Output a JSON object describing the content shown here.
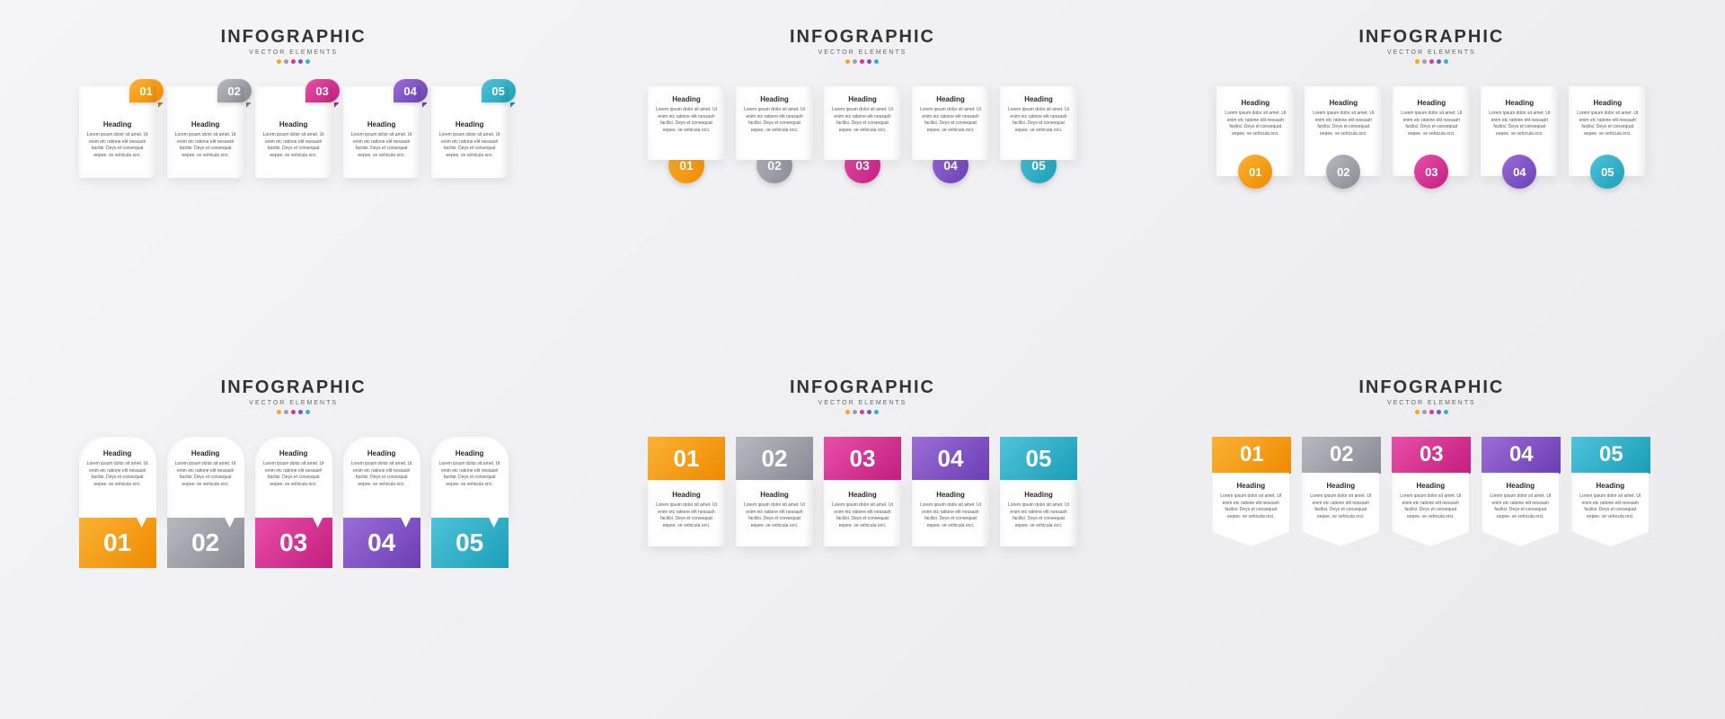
{
  "title": "INFOGRAPHIC",
  "subtitle": "VECTOR ELEMENTS",
  "heading": "Heading",
  "body": "Lorem ipsum dolor sit amet. Ut enim etc ratione elit nessash facilisi. Deys et consequat eepee. ve vehicula orci.",
  "title_fontsize": 20,
  "subtitle_fontsize": 7,
  "heading_fontsize": 8,
  "body_fontsize": 5,
  "background_gradient": [
    "#f5f5f7",
    "#ebebee"
  ],
  "card_bg": "#ffffff",
  "text_color": "#333333",
  "body_color": "#555555",
  "items": [
    {
      "num": "01",
      "grad": [
        "#f9b233",
        "#f08a00"
      ],
      "solid": "#f5a623"
    },
    {
      "num": "02",
      "grad": [
        "#b8b8c0",
        "#8a8a95"
      ],
      "solid": "#9e9ea8"
    },
    {
      "num": "03",
      "grad": [
        "#e84fa8",
        "#c31e7e"
      ],
      "solid": "#d43a94"
    },
    {
      "num": "04",
      "grad": [
        "#9b6dd7",
        "#6a3fb5"
      ],
      "solid": "#7d52c4"
    },
    {
      "num": "05",
      "grad": [
        "#4fc3d9",
        "#1a9fb8"
      ],
      "solid": "#2fb4cb"
    }
  ],
  "dot_colors": [
    "#f5a623",
    "#9e9ea8",
    "#d43a94",
    "#7d52c4",
    "#2fb4cb"
  ],
  "variants": [
    {
      "id": "v1",
      "type": "infographic",
      "style": "tab-top-right"
    },
    {
      "id": "v2",
      "type": "infographic",
      "style": "circle-bottom"
    },
    {
      "id": "v3",
      "type": "infographic",
      "style": "circle-overlap-bottom"
    },
    {
      "id": "v4",
      "type": "infographic",
      "style": "rounded-top-block-bottom"
    },
    {
      "id": "v5",
      "type": "infographic",
      "style": "block-top-fold"
    },
    {
      "id": "v6",
      "type": "infographic",
      "style": "block-top-pentagon"
    }
  ]
}
